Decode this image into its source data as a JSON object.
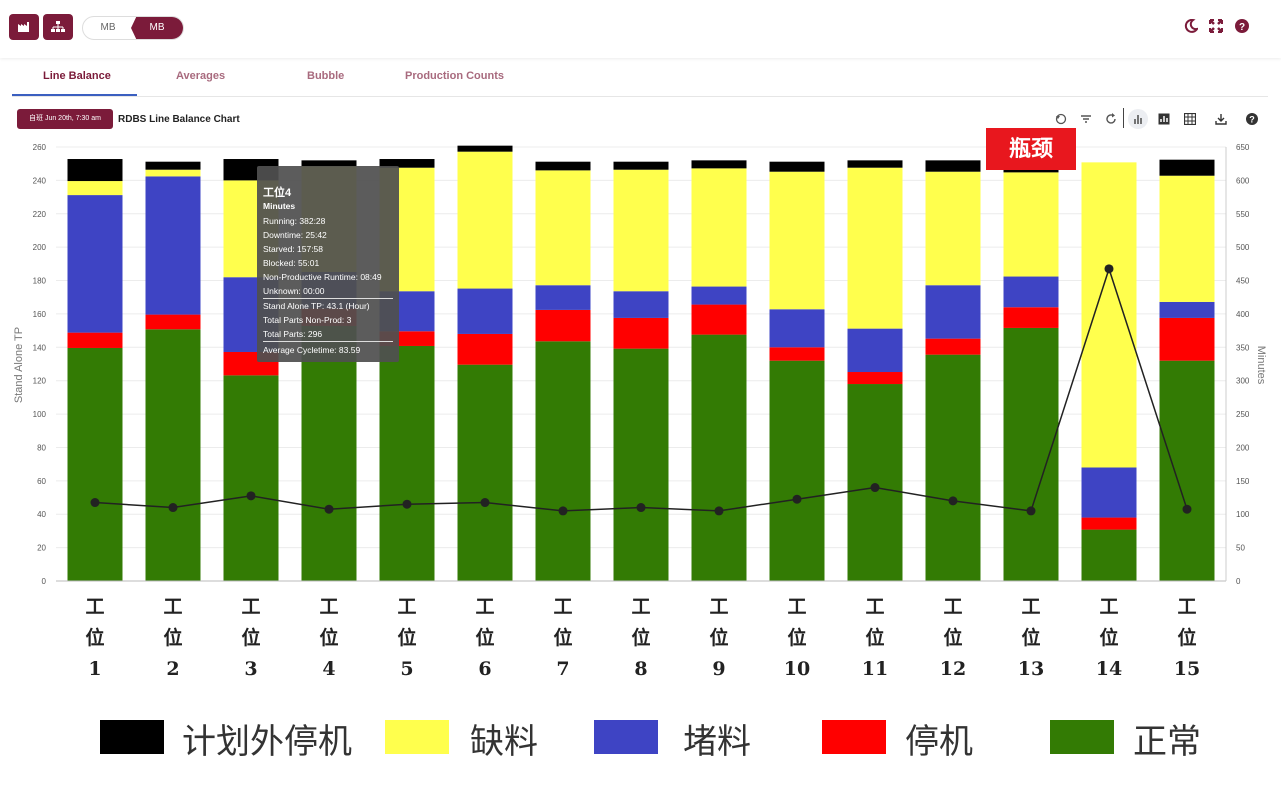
{
  "toolbar": {
    "toggle_left": "MB",
    "toggle_right": "MB"
  },
  "tabs": [
    "Line Balance",
    "Averages",
    "Bubble",
    "Production Counts"
  ],
  "chart_header": {
    "date_button": "自班 Jun 20th, 7:30 am",
    "title": "RDBS Line Balance Chart"
  },
  "bottleneck_label": "瓶颈",
  "tooltip": {
    "title": "工位4",
    "subtitle": "Minutes",
    "lines1": [
      "Running: 382:28",
      "Downtime: 25:42",
      "Starved: 157:58",
      "Blocked: 55:01",
      "Non-Productive Runtime: 08:49",
      "Unknown: 00:00"
    ],
    "lines2": [
      "Stand Alone TP: 43.1 (Hour)",
      "Total Parts Non-Prod: 3",
      "Total Parts: 296"
    ],
    "lines3": [
      "Average Cycletime: 83.59"
    ]
  },
  "legend": [
    {
      "label": "计划外停机",
      "color": "#000000"
    },
    {
      "label": "缺料",
      "color": "#ffff4d"
    },
    {
      "label": "堵料",
      "color": "#3e44c4"
    },
    {
      "label": "停机",
      "color": "#ff0000"
    },
    {
      "label": "正常",
      "color": "#337b04"
    }
  ],
  "chart_data": {
    "type": "bar",
    "stacked": true,
    "title": "RDBS Line Balance Chart",
    "ylabel_left": "Stand Alone TP",
    "ylabel_right": "Minutes",
    "ylim_left": [
      0,
      260
    ],
    "ylim_right": [
      0,
      650
    ],
    "yticks_left": [
      0,
      20,
      40,
      60,
      80,
      100,
      120,
      140,
      160,
      180,
      200,
      220,
      240,
      260
    ],
    "yticks_right": [
      0,
      50,
      100,
      150,
      200,
      250,
      300,
      350,
      400,
      450,
      500,
      550,
      600,
      650
    ],
    "categories": [
      "工位 1",
      "工位 2",
      "工位 3",
      "工位 4",
      "工位 5",
      "工位 6",
      "工位 7",
      "工位 8",
      "工位 9",
      "工位 10",
      "工位 11",
      "工位 12",
      "工位 13",
      "工位 14",
      "工位 15"
    ],
    "station_word": [
      "工",
      "位"
    ],
    "station_numbers": [
      "1",
      "2",
      "3",
      "4",
      "5",
      "6",
      "7",
      "8",
      "9",
      "10",
      "11",
      "12",
      "13",
      "14",
      "15"
    ],
    "series": [
      {
        "name": "正常",
        "color": "#337b04",
        "values": [
          349,
          377,
          308,
          382,
          352,
          324,
          359,
          348,
          369,
          330,
          295,
          339,
          379,
          77,
          330
        ]
      },
      {
        "name": "停机",
        "color": "#ff0000",
        "values": [
          23,
          22,
          35,
          26,
          22,
          46,
          47,
          46,
          45,
          20,
          18,
          24,
          31,
          18,
          64
        ]
      },
      {
        "name": "堵料",
        "color": "#3e44c4",
        "values": [
          206,
          207,
          112,
          55,
          60,
          68,
          37,
          40,
          27,
          57,
          65,
          80,
          46,
          75,
          24
        ]
      },
      {
        "name": "缺料",
        "color": "#ffff4d",
        "values": [
          21,
          10,
          145,
          158,
          185,
          205,
          172,
          182,
          177,
          206,
          241,
          170,
          156,
          457,
          189
        ]
      },
      {
        "name": "计划外停机",
        "color": "#000000",
        "values": [
          33,
          12,
          32,
          9,
          13,
          9,
          13,
          12,
          12,
          15,
          11,
          17,
          18,
          0,
          24
        ]
      }
    ],
    "line": {
      "name": "Stand Alone TP",
      "color": "#222222",
      "values": [
        47,
        44,
        51,
        43,
        46,
        47,
        42,
        44,
        42,
        49,
        56,
        48,
        42,
        187,
        43
      ]
    }
  }
}
